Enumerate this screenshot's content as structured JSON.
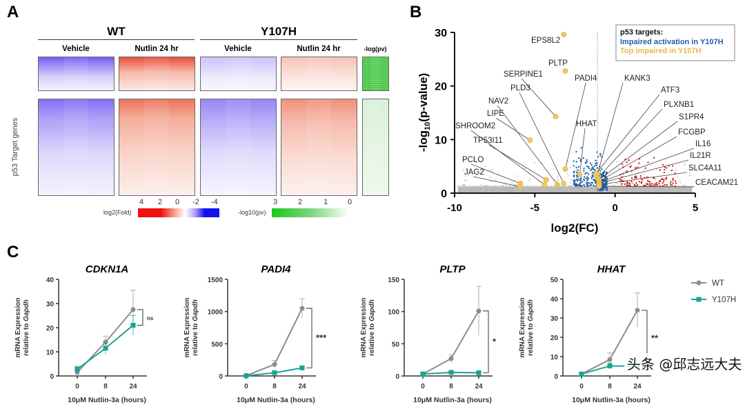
{
  "panels": {
    "a": "A",
    "b": "B",
    "c": "C"
  },
  "heatmap": {
    "groups": [
      "WT",
      "Y107H"
    ],
    "columns": [
      "Vehicle",
      "Nutlin 24 hr",
      "Vehicle",
      "Nutlin 24 hr",
      "-log(pv)"
    ],
    "ylabel": "p53 Target genes",
    "fold_legend": {
      "label": "log2(Fold)",
      "ticks": [
        "4",
        "2",
        "0",
        "-2",
        "-4"
      ]
    },
    "pv_legend": {
      "label": "-log10(pv)",
      "ticks": [
        "3",
        "2",
        "1",
        "0"
      ]
    },
    "colors": {
      "up": "#e8422f",
      "down": "#5a3cf0",
      "pv": "#3cc23c"
    }
  },
  "chart_data": [
    {
      "type": "scatter",
      "xlabel": "log2(FC)",
      "ylabel": "-log10(p-value)",
      "xlim": [
        -10,
        5
      ],
      "ylim": [
        0,
        30
      ],
      "xticks": [
        "-10",
        "-5",
        "0",
        "5"
      ],
      "yticks": [
        "0",
        "10",
        "20",
        "30"
      ],
      "thresholds": {
        "x": -1.1,
        "y": 1.3
      },
      "legend": {
        "title": "p53 targets:",
        "items": [
          {
            "label": "Impaired activation in Y107H",
            "color": "#1f5fa8"
          },
          {
            "label": "Top impaired in Y107H",
            "color": "#e8b84a"
          }
        ],
        "placement": "top-right"
      },
      "labeled_points": [
        {
          "gene": "EPS8L2",
          "x": -3.2,
          "y": 29.6
        },
        {
          "gene": "PLTP",
          "x": -3.1,
          "y": 22.8
        },
        {
          "gene": "SERPINE1",
          "x": -3.7,
          "y": 14.3
        },
        {
          "gene": "PADI4",
          "x": -3.1,
          "y": 4.5
        },
        {
          "gene": "PLD3",
          "x": -3.2,
          "y": 1.8
        },
        {
          "gene": "NAV2",
          "x": -3.6,
          "y": 1.6
        },
        {
          "gene": "LIPE",
          "x": -5.3,
          "y": 9.9
        },
        {
          "gene": "SHROOM2",
          "x": -4.4,
          "y": 1.6
        },
        {
          "gene": "HHAT",
          "x": -2.2,
          "y": 3.5
        },
        {
          "gene": "TP53I11",
          "x": -4.3,
          "y": 2.5
        },
        {
          "gene": "PCLO",
          "x": -5.9,
          "y": 1.8
        },
        {
          "gene": "JAG2",
          "x": -5.9,
          "y": 1.2
        },
        {
          "gene": "KANK3",
          "x": -1.1,
          "y": 3.5
        },
        {
          "gene": "ATF3",
          "x": -1.2,
          "y": 3.6
        },
        {
          "gene": "PLXNB1",
          "x": -1.1,
          "y": 2.8
        },
        {
          "gene": "S1PR4",
          "x": -1.0,
          "y": 2.5
        },
        {
          "gene": "FCGBP",
          "x": -1.0,
          "y": 2.2
        },
        {
          "gene": "IL16",
          "x": -1.0,
          "y": 2.0
        },
        {
          "gene": "IL21R",
          "x": -1.0,
          "y": 1.8
        },
        {
          "gene": "SLC4A11",
          "x": -1.0,
          "y": 1.6
        },
        {
          "gene": "CEACAM21",
          "x": -1.0,
          "y": 1.3
        }
      ]
    },
    {
      "type": "line",
      "title": "CDKN1A",
      "ylim": [
        0,
        40
      ],
      "yticks": [
        "0",
        "10",
        "20",
        "30",
        "40"
      ],
      "categories": [
        "0",
        "8",
        "24"
      ],
      "xlabel": "10μM Nutlin-3a (hours)",
      "ylabel": "mRNA Expression relative to Gapdh",
      "significance": "ns",
      "series": [
        {
          "name": "WT",
          "values": [
            1.5,
            14,
            27.5
          ],
          "errors": [
            1,
            2.5,
            8
          ]
        },
        {
          "name": "Y107H",
          "values": [
            2.8,
            11.5,
            21
          ],
          "errors": [
            1.2,
            2.5,
            4
          ]
        }
      ]
    },
    {
      "type": "line",
      "title": "PADI4",
      "ylim": [
        0,
        1500
      ],
      "yticks": [
        "0",
        "500",
        "1000",
        "1500"
      ],
      "categories": [
        "0",
        "8",
        "24"
      ],
      "xlabel": "10μM Nutlin-3a (hours)",
      "ylabel": "mRNA Expression relative to Gapdh",
      "significance": "***",
      "series": [
        {
          "name": "WT",
          "values": [
            5,
            180,
            1050
          ],
          "errors": [
            5,
            60,
            150
          ]
        },
        {
          "name": "Y107H",
          "values": [
            3,
            50,
            125
          ],
          "errors": [
            5,
            15,
            25
          ]
        }
      ]
    },
    {
      "type": "line",
      "title": "PLTP",
      "ylim": [
        0,
        150
      ],
      "yticks": [
        "0",
        "50",
        "100",
        "150"
      ],
      "categories": [
        "0",
        "8",
        "24"
      ],
      "xlabel": "10μM Nutlin-3a (hours)",
      "ylabel": "mRNA Expression relative to Gapdh",
      "significance": "*",
      "series": [
        {
          "name": "WT",
          "values": [
            3,
            27,
            101
          ],
          "errors": [
            2,
            6,
            38
          ]
        },
        {
          "name": "Y107H",
          "values": [
            3,
            5.5,
            5
          ],
          "errors": [
            2,
            1,
            1
          ]
        }
      ]
    },
    {
      "type": "line",
      "title": "HHAT",
      "ylim": [
        0,
        50
      ],
      "yticks": [
        "0",
        "10",
        "20",
        "30",
        "40",
        "50"
      ],
      "categories": [
        "0",
        "8",
        "24"
      ],
      "xlabel": "10μM Nutlin-3a (hours)",
      "ylabel": "mRNA Expression relative to Gapdh",
      "significance": "**",
      "series": [
        {
          "name": "WT",
          "values": [
            1,
            8.5,
            34
          ],
          "errors": [
            0.5,
            3.5,
            9
          ]
        },
        {
          "name": "Y107H",
          "values": [
            1,
            5.2,
            5
          ],
          "errors": [
            0.5,
            1.5,
            2.5
          ]
        }
      ]
    }
  ],
  "line_legend": [
    {
      "label": "WT",
      "color": "#8c8c8c"
    },
    {
      "label": "Y107H",
      "color": "#1aa396"
    }
  ],
  "watermark": "头条 @邱志远大夫"
}
